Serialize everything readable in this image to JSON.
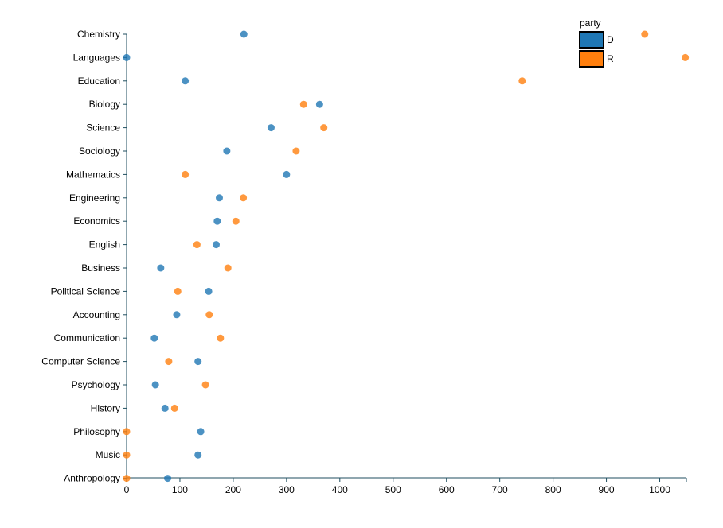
{
  "chart_data": {
    "type": "scatter",
    "xlim": [
      0,
      1050
    ],
    "xticks": [
      0,
      100,
      200,
      300,
      400,
      500,
      600,
      700,
      800,
      900,
      1000
    ],
    "grid": false,
    "legend_position": "top-right",
    "legend_title": "party",
    "categories": [
      "Chemistry",
      "Languages",
      "Education",
      "Biology",
      "Science",
      "Sociology",
      "Mathematics",
      "Engineering",
      "Economics",
      "English",
      "Business",
      "Political Science",
      "Accounting",
      "Communication",
      "Computer Science",
      "Psychology",
      "History",
      "Philosophy",
      "Music",
      "Anthropology"
    ],
    "series": [
      {
        "name": "D",
        "color": "#1f77b4",
        "values": [
          220,
          0,
          110,
          362,
          271,
          188,
          300,
          174,
          170,
          168,
          64,
          154,
          94,
          52,
          134,
          54,
          72,
          139,
          134,
          77
        ]
      },
      {
        "name": "R",
        "color": "#ff7f0e",
        "values": [
          972,
          1048,
          742,
          332,
          370,
          318,
          110,
          219,
          205,
          132,
          190,
          96,
          155,
          176,
          79,
          148,
          90,
          0,
          0,
          0
        ]
      }
    ]
  }
}
